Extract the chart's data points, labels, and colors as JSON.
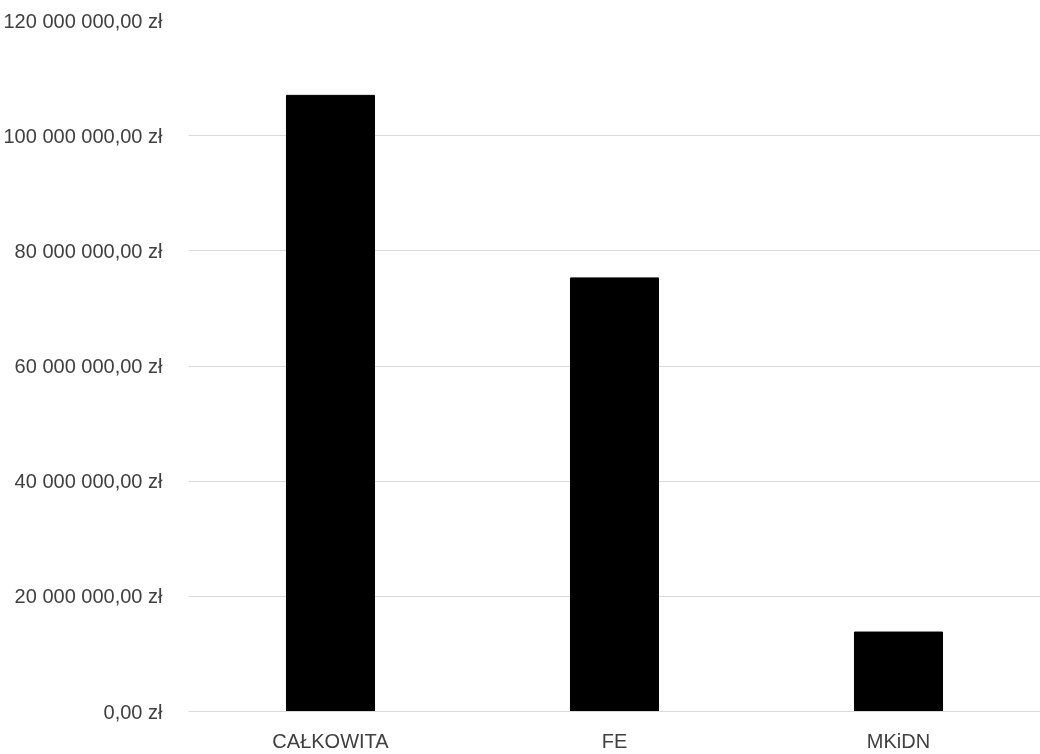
{
  "chart_data": {
    "type": "bar",
    "categories": [
      "CAŁKOWITA",
      "FE",
      "MKiDN"
    ],
    "values": [
      107000000,
      75300000,
      13800000
    ],
    "color": "#000000",
    "ylim": [
      0,
      120000000
    ],
    "yticks": [
      {
        "value": 0,
        "label": "0,00 zł"
      },
      {
        "value": 20000000,
        "label": "20 000 000,00 zł"
      },
      {
        "value": 40000000,
        "label": "40 000 000,00 zł"
      },
      {
        "value": 60000000,
        "label": "60 000 000,00 zł"
      },
      {
        "value": 80000000,
        "label": "80 000 000,00 zł"
      },
      {
        "value": 100000000,
        "label": "100 000 000,00 zł"
      },
      {
        "value": 120000000,
        "label": "120 000 000,00 zł"
      }
    ],
    "grid": "y"
  }
}
